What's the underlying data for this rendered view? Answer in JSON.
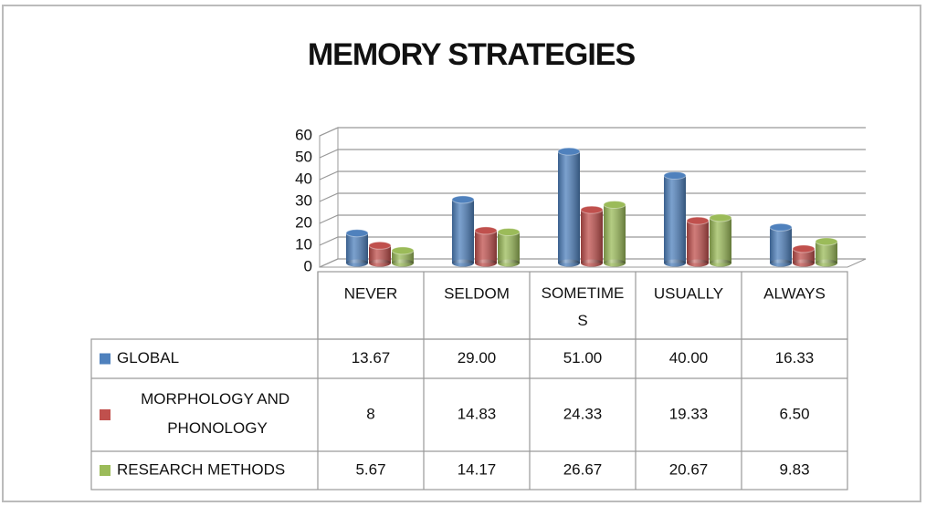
{
  "chart_data": {
    "type": "bar3d",
    "title": "MEMORY STRATEGIES",
    "categories": [
      "NEVER",
      "SELDOM",
      "SOMETIMES",
      "USUALLY",
      "ALWAYS"
    ],
    "series": [
      {
        "name": "GLOBAL",
        "color": "#4f81bd",
        "values": [
          13.67,
          29,
          51,
          40,
          16.33
        ],
        "value_labels": [
          "13.67",
          "29.00",
          "51.00",
          "40.00",
          "16.33"
        ]
      },
      {
        "name": "MORPHOLOGY AND PHONOLOGY",
        "color": "#c0504d",
        "values": [
          8,
          14.83,
          24.33,
          19.33,
          6.5
        ],
        "value_labels": [
          "8",
          "14.83",
          "24.33",
          "19.33",
          "6.50"
        ]
      },
      {
        "name": "RESEARCH METHODS",
        "color": "#9bbb59",
        "values": [
          5.67,
          14.17,
          26.67,
          20.67,
          9.83
        ],
        "value_labels": [
          "5.67",
          "14.17",
          "26.67",
          "20.67",
          "9.83"
        ]
      }
    ],
    "ylim": [
      0,
      60
    ],
    "yticks": [
      0,
      10,
      20,
      30,
      40,
      50,
      60
    ],
    "grid": true,
    "data_table": true
  }
}
